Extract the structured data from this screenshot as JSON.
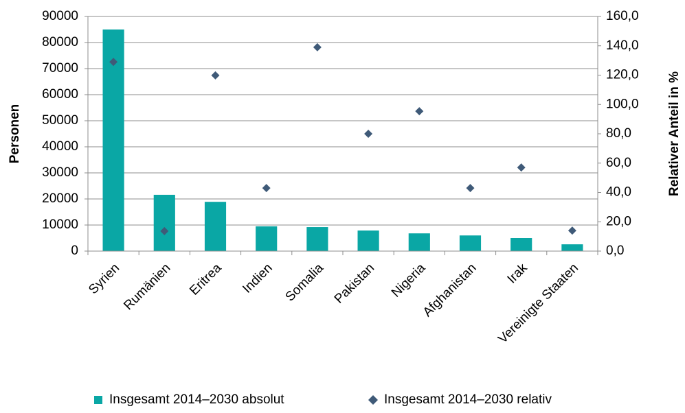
{
  "chart_data": {
    "type": "bar",
    "categories": [
      "Syrien",
      "Rumänien",
      "Eritrea",
      "Indien",
      "Somalia",
      "Pakistan",
      "Nigeria",
      "Afghanistan",
      "Irak",
      "Vereinigte Staaten"
    ],
    "series": [
      {
        "name": "Insgesamt 2014–2030 absolut",
        "type": "bar",
        "color": "#0aa7a5",
        "values": [
          85000,
          21600,
          18900,
          9500,
          9200,
          7900,
          6800,
          6000,
          5000,
          2600
        ]
      },
      {
        "name": "Insgesamt 2014–2030 relativ",
        "type": "scatter",
        "axis": "y2",
        "color": "#3f5a78",
        "values": [
          129,
          13.6,
          119.8,
          43,
          139,
          80,
          95.4,
          43,
          57,
          14
        ]
      }
    ],
    "ylabel": "Personen",
    "y2label": "Relativer Anteil in %",
    "ylim": [
      0,
      90000
    ],
    "yticks": [
      0,
      10000,
      20000,
      30000,
      40000,
      50000,
      60000,
      70000,
      80000,
      90000
    ],
    "y2lim": [
      0,
      160
    ],
    "y2ticks": [
      {
        "value": 0,
        "label": "0,0"
      },
      {
        "value": 20,
        "label": "20,0"
      },
      {
        "value": 40,
        "label": "40,0"
      },
      {
        "value": 60,
        "label": "60,0"
      },
      {
        "value": 80,
        "label": "80,0"
      },
      {
        "value": 100,
        "label": "100,0"
      },
      {
        "value": 120,
        "label": "120,0"
      },
      {
        "value": 140,
        "label": "140,0"
      },
      {
        "value": 160,
        "label": "160,0"
      }
    ],
    "grid": true,
    "legend": "bottom"
  }
}
